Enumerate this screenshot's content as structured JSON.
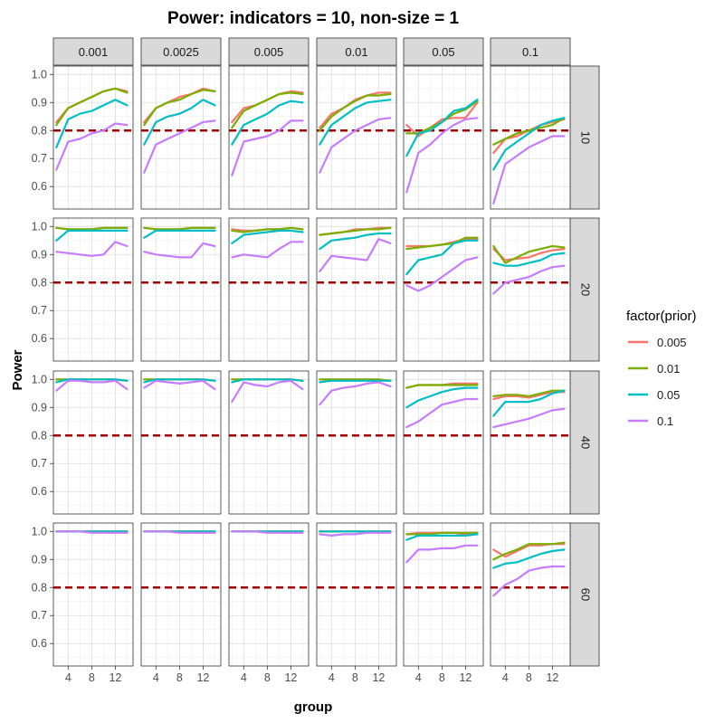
{
  "chart_data": {
    "type": "line",
    "title": "Power: indicators = 10, non-size = 1",
    "xlabel": "group",
    "ylabel": "Power",
    "x": [
      2,
      4,
      6,
      8,
      10,
      12,
      14
    ],
    "xticks": [
      "4",
      "8",
      "12"
    ],
    "xtick_values": [
      4,
      8,
      12
    ],
    "xlim": [
      1.5,
      15
    ],
    "ylim": [
      0.52,
      1.03
    ],
    "yticks": [
      "0.6",
      "0.7",
      "0.8",
      "0.9",
      "1.0"
    ],
    "ytick_values": [
      0.6,
      0.7,
      0.8,
      0.9,
      1.0
    ],
    "grid": true,
    "reference_line": {
      "y": 0.8,
      "color": "#a00000",
      "style": "dashed"
    },
    "col_facet_labels": [
      "0.001",
      "0.0025",
      "0.005",
      "0.01",
      "0.05",
      "0.1"
    ],
    "row_facet_labels": [
      "10",
      "20",
      "40",
      "60"
    ],
    "legend": {
      "title": "factor(prior)",
      "position": "right"
    },
    "series": [
      {
        "name": "0.005",
        "color": "#F8766D"
      },
      {
        "name": "0.01",
        "color": "#7CAE00"
      },
      {
        "name": "0.05",
        "color": "#00BFC4"
      },
      {
        "name": "0.1",
        "color": "#C77CFF"
      }
    ],
    "facets": [
      [
        {
          "values": [
            [
              0.83,
              0.88,
              0.9,
              0.92,
              0.94,
              0.95,
              0.94
            ],
            [
              0.82,
              0.88,
              0.9,
              0.92,
              0.94,
              0.95,
              0.935
            ],
            [
              0.74,
              0.84,
              0.86,
              0.87,
              0.89,
              0.91,
              0.89
            ],
            [
              0.66,
              0.76,
              0.77,
              0.79,
              0.8,
              0.825,
              0.82
            ]
          ]
        },
        {
          "values": [
            [
              0.83,
              0.88,
              0.9,
              0.92,
              0.93,
              0.95,
              0.94
            ],
            [
              0.82,
              0.88,
              0.9,
              0.91,
              0.93,
              0.945,
              0.94
            ],
            [
              0.75,
              0.83,
              0.85,
              0.86,
              0.88,
              0.91,
              0.89
            ],
            [
              0.65,
              0.75,
              0.77,
              0.79,
              0.81,
              0.83,
              0.835
            ]
          ]
        },
        {
          "values": [
            [
              0.83,
              0.88,
              0.89,
              0.91,
              0.93,
              0.94,
              0.935
            ],
            [
              0.81,
              0.87,
              0.89,
              0.91,
              0.93,
              0.935,
              0.93
            ],
            [
              0.75,
              0.82,
              0.84,
              0.86,
              0.89,
              0.905,
              0.9
            ],
            [
              0.64,
              0.76,
              0.77,
              0.78,
              0.8,
              0.835,
              0.835
            ]
          ]
        },
        {
          "values": [
            [
              0.81,
              0.86,
              0.88,
              0.91,
              0.925,
              0.935,
              0.935
            ],
            [
              0.8,
              0.85,
              0.88,
              0.905,
              0.925,
              0.925,
              0.93
            ],
            [
              0.75,
              0.82,
              0.85,
              0.88,
              0.9,
              0.905,
              0.91
            ],
            [
              0.65,
              0.74,
              0.77,
              0.8,
              0.82,
              0.84,
              0.845
            ]
          ]
        },
        {
          "values": [
            [
              0.82,
              0.78,
              0.81,
              0.84,
              0.845,
              0.845,
              0.9
            ],
            [
              0.79,
              0.79,
              0.81,
              0.83,
              0.86,
              0.875,
              0.905
            ],
            [
              0.71,
              0.79,
              0.8,
              0.83,
              0.87,
              0.88,
              0.91
            ],
            [
              0.58,
              0.72,
              0.75,
              0.79,
              0.82,
              0.84,
              0.845
            ]
          ]
        },
        {
          "values": [
            [
              0.72,
              0.77,
              0.78,
              0.8,
              0.82,
              0.83,
              0.84
            ],
            [
              0.75,
              0.77,
              0.79,
              0.8,
              0.81,
              0.82,
              0.845
            ],
            [
              0.66,
              0.73,
              0.76,
              0.79,
              0.82,
              0.835,
              0.845
            ],
            [
              0.54,
              0.68,
              0.71,
              0.74,
              0.76,
              0.78,
              0.78
            ]
          ]
        }
      ],
      [
        {
          "values": [
            [
              0.995,
              0.99,
              0.99,
              0.99,
              0.995,
              0.995,
              0.995
            ],
            [
              0.995,
              0.99,
              0.99,
              0.99,
              0.995,
              0.995,
              0.995
            ],
            [
              0.95,
              0.985,
              0.985,
              0.985,
              0.985,
              0.985,
              0.985
            ],
            [
              0.91,
              0.905,
              0.9,
              0.895,
              0.9,
              0.945,
              0.93
            ]
          ]
        },
        {
          "values": [
            [
              0.995,
              0.99,
              0.99,
              0.99,
              0.995,
              0.995,
              0.995
            ],
            [
              0.995,
              0.99,
              0.99,
              0.99,
              0.995,
              0.995,
              0.995
            ],
            [
              0.96,
              0.985,
              0.985,
              0.985,
              0.985,
              0.985,
              0.985
            ],
            [
              0.91,
              0.9,
              0.895,
              0.89,
              0.89,
              0.94,
              0.93
            ]
          ]
        },
        {
          "values": [
            [
              0.99,
              0.985,
              0.985,
              0.99,
              0.99,
              0.995,
              0.99
            ],
            [
              0.985,
              0.98,
              0.985,
              0.99,
              0.99,
              0.995,
              0.99
            ],
            [
              0.94,
              0.97,
              0.975,
              0.98,
              0.985,
              0.985,
              0.98
            ],
            [
              0.89,
              0.9,
              0.895,
              0.89,
              0.92,
              0.945,
              0.945
            ]
          ]
        },
        {
          "values": [
            [
              0.97,
              0.975,
              0.98,
              0.99,
              0.99,
              0.995,
              0.995
            ],
            [
              0.97,
              0.975,
              0.98,
              0.985,
              0.99,
              0.99,
              0.995
            ],
            [
              0.92,
              0.95,
              0.955,
              0.96,
              0.97,
              0.975,
              0.975
            ],
            [
              0.84,
              0.895,
              0.89,
              0.885,
              0.88,
              0.955,
              0.94
            ]
          ]
        },
        {
          "values": [
            [
              0.93,
              0.93,
              0.93,
              0.935,
              0.945,
              0.955,
              0.955
            ],
            [
              0.92,
              0.925,
              0.93,
              0.935,
              0.94,
              0.96,
              0.96
            ],
            [
              0.83,
              0.88,
              0.89,
              0.9,
              0.94,
              0.95,
              0.95
            ],
            [
              0.79,
              0.77,
              0.79,
              0.82,
              0.85,
              0.88,
              0.89
            ]
          ]
        },
        {
          "values": [
            [
              0.92,
              0.88,
              0.885,
              0.89,
              0.905,
              0.915,
              0.92
            ],
            [
              0.93,
              0.87,
              0.89,
              0.91,
              0.92,
              0.93,
              0.925
            ],
            [
              0.87,
              0.86,
              0.86,
              0.87,
              0.88,
              0.9,
              0.905
            ],
            [
              0.76,
              0.8,
              0.81,
              0.82,
              0.84,
              0.855,
              0.86
            ]
          ]
        }
      ],
      [
        {
          "values": [
            [
              1.0,
              1.0,
              1.0,
              1.0,
              1.0,
              1.0,
              0.995
            ],
            [
              1.0,
              1.0,
              1.0,
              1.0,
              1.0,
              1.0,
              0.995
            ],
            [
              0.99,
              1.0,
              1.0,
              1.0,
              1.0,
              1.0,
              0.995
            ],
            [
              0.96,
              0.995,
              0.995,
              0.99,
              0.99,
              0.995,
              0.965
            ]
          ]
        },
        {
          "values": [
            [
              1.0,
              1.0,
              1.0,
              1.0,
              1.0,
              1.0,
              0.995
            ],
            [
              1.0,
              1.0,
              1.0,
              1.0,
              1.0,
              1.0,
              0.995
            ],
            [
              0.99,
              1.0,
              1.0,
              1.0,
              1.0,
              1.0,
              0.995
            ],
            [
              0.97,
              0.995,
              0.99,
              0.985,
              0.99,
              0.995,
              0.965
            ]
          ]
        },
        {
          "values": [
            [
              1.0,
              1.0,
              1.0,
              1.0,
              1.0,
              1.0,
              0.995
            ],
            [
              1.0,
              1.0,
              1.0,
              1.0,
              1.0,
              1.0,
              0.995
            ],
            [
              0.99,
              1.0,
              1.0,
              1.0,
              1.0,
              1.0,
              0.995
            ],
            [
              0.92,
              0.99,
              0.98,
              0.975,
              0.99,
              0.995,
              0.965
            ]
          ]
        },
        {
          "values": [
            [
              1.0,
              1.0,
              1.0,
              1.0,
              1.0,
              1.0,
              0.995
            ],
            [
              1.0,
              1.0,
              1.0,
              1.0,
              1.0,
              1.0,
              0.995
            ],
            [
              0.99,
              0.995,
              0.995,
              0.995,
              0.995,
              0.995,
              0.995
            ],
            [
              0.91,
              0.96,
              0.97,
              0.975,
              0.985,
              0.99,
              0.975
            ]
          ]
        },
        {
          "values": [
            [
              0.97,
              0.98,
              0.98,
              0.98,
              0.985,
              0.985,
              0.985
            ],
            [
              0.97,
              0.98,
              0.98,
              0.98,
              0.98,
              0.98,
              0.98
            ],
            [
              0.9,
              0.925,
              0.94,
              0.955,
              0.965,
              0.97,
              0.97
            ],
            [
              0.83,
              0.85,
              0.88,
              0.91,
              0.92,
              0.93,
              0.93
            ]
          ]
        },
        {
          "values": [
            [
              0.93,
              0.94,
              0.94,
              0.935,
              0.945,
              0.955,
              0.955
            ],
            [
              0.94,
              0.945,
              0.945,
              0.94,
              0.95,
              0.96,
              0.96
            ],
            [
              0.87,
              0.92,
              0.92,
              0.92,
              0.93,
              0.95,
              0.96
            ],
            [
              0.83,
              0.84,
              0.85,
              0.86,
              0.875,
              0.89,
              0.895
            ]
          ]
        }
      ],
      [
        {
          "values": [
            [
              1.0,
              1.0,
              1.0,
              1.0,
              1.0,
              1.0,
              1.0
            ],
            [
              1.0,
              1.0,
              1.0,
              1.0,
              1.0,
              1.0,
              1.0
            ],
            [
              1.0,
              1.0,
              1.0,
              1.0,
              1.0,
              1.0,
              1.0
            ],
            [
              1.0,
              1.0,
              1.0,
              0.995,
              0.995,
              0.995,
              0.995
            ]
          ]
        },
        {
          "values": [
            [
              1.0,
              1.0,
              1.0,
              1.0,
              1.0,
              1.0,
              1.0
            ],
            [
              1.0,
              1.0,
              1.0,
              1.0,
              1.0,
              1.0,
              1.0
            ],
            [
              1.0,
              1.0,
              1.0,
              1.0,
              1.0,
              1.0,
              1.0
            ],
            [
              1.0,
              1.0,
              1.0,
              0.995,
              0.995,
              0.995,
              0.995
            ]
          ]
        },
        {
          "values": [
            [
              1.0,
              1.0,
              1.0,
              1.0,
              1.0,
              1.0,
              1.0
            ],
            [
              1.0,
              1.0,
              1.0,
              1.0,
              1.0,
              1.0,
              1.0
            ],
            [
              1.0,
              1.0,
              1.0,
              1.0,
              1.0,
              1.0,
              1.0
            ],
            [
              1.0,
              1.0,
              1.0,
              0.995,
              0.995,
              0.995,
              0.995
            ]
          ]
        },
        {
          "values": [
            [
              1.0,
              1.0,
              1.0,
              1.0,
              1.0,
              1.0,
              1.0
            ],
            [
              1.0,
              1.0,
              1.0,
              1.0,
              1.0,
              1.0,
              1.0
            ],
            [
              1.0,
              1.0,
              1.0,
              1.0,
              1.0,
              1.0,
              1.0
            ],
            [
              0.99,
              0.985,
              0.99,
              0.99,
              0.995,
              0.995,
              0.995
            ]
          ]
        },
        {
          "values": [
            [
              0.99,
              0.995,
              0.995,
              0.995,
              0.995,
              0.99,
              0.995
            ],
            [
              0.99,
              0.99,
              0.99,
              0.995,
              0.995,
              0.995,
              0.995
            ],
            [
              0.97,
              0.985,
              0.985,
              0.985,
              0.985,
              0.985,
              0.99
            ],
            [
              0.89,
              0.935,
              0.935,
              0.94,
              0.94,
              0.95,
              0.95
            ]
          ]
        },
        {
          "values": [
            [
              0.935,
              0.91,
              0.93,
              0.95,
              0.95,
              0.955,
              0.955
            ],
            [
              0.9,
              0.92,
              0.935,
              0.955,
              0.955,
              0.955,
              0.96
            ],
            [
              0.87,
              0.885,
              0.89,
              0.905,
              0.92,
              0.93,
              0.935
            ],
            [
              0.77,
              0.81,
              0.83,
              0.86,
              0.87,
              0.875,
              0.875
            ]
          ]
        }
      ]
    ]
  }
}
